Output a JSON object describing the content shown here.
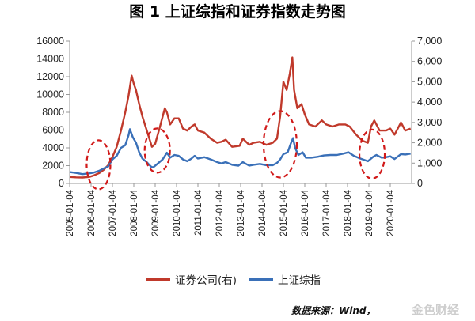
{
  "chart_data": {
    "type": "line",
    "title": "图 1 上证综指和证券指数走势图",
    "source": "数据来源：Wind，",
    "watermark": "金色财经",
    "x_labels": [
      "2005-01-04",
      "2006-01-04",
      "2007-01-04",
      "2008-01-04",
      "2009-01-04",
      "2010-01-04",
      "2011-01-04",
      "2012-01-04",
      "2013-01-04",
      "2014-01-04",
      "2015-01-04",
      "2016-01-04",
      "2017-01-04",
      "2018-01-04",
      "2019-01-04",
      "2020-01-04"
    ],
    "x_range": [
      2005.0,
      2021.0
    ],
    "y_left": {
      "ticks": [
        "0",
        "2000",
        "4000",
        "6000",
        "8000",
        "10000",
        "12000",
        "14000",
        "16000"
      ],
      "range": [
        0,
        16000
      ]
    },
    "y_right": {
      "ticks": [
        "0",
        "1,000",
        "2,000",
        "3,000",
        "4,000",
        "5,000",
        "6,000",
        "7,000"
      ],
      "range": [
        0,
        7000
      ]
    },
    "legend_position": "bottom",
    "series": [
      {
        "name": "证券公司(右)",
        "axis": "right",
        "color": "#c0392b",
        "points": [
          [
            2005.0,
            320
          ],
          [
            2005.3,
            300
          ],
          [
            2005.6,
            290
          ],
          [
            2005.9,
            320
          ],
          [
            2006.1,
            380
          ],
          [
            2006.4,
            520
          ],
          [
            2006.6,
            680
          ],
          [
            2006.8,
            900
          ],
          [
            2007.0,
            1300
          ],
          [
            2007.2,
            1800
          ],
          [
            2007.4,
            2600
          ],
          [
            2007.6,
            3500
          ],
          [
            2007.75,
            4300
          ],
          [
            2007.9,
            5300
          ],
          [
            2008.0,
            4900
          ],
          [
            2008.1,
            4600
          ],
          [
            2008.25,
            3900
          ],
          [
            2008.4,
            3300
          ],
          [
            2008.55,
            2800
          ],
          [
            2008.7,
            2300
          ],
          [
            2008.85,
            1800
          ],
          [
            2009.0,
            1950
          ],
          [
            2009.2,
            2700
          ],
          [
            2009.45,
            3700
          ],
          [
            2009.55,
            3500
          ],
          [
            2009.7,
            2900
          ],
          [
            2009.9,
            3200
          ],
          [
            2010.1,
            3200
          ],
          [
            2010.3,
            2700
          ],
          [
            2010.5,
            2600
          ],
          [
            2010.7,
            2800
          ],
          [
            2010.85,
            2900
          ],
          [
            2011.0,
            2600
          ],
          [
            2011.3,
            2500
          ],
          [
            2011.6,
            2200
          ],
          [
            2011.9,
            2000
          ],
          [
            2012.1,
            2050
          ],
          [
            2012.3,
            2150
          ],
          [
            2012.6,
            1800
          ],
          [
            2012.95,
            1850
          ],
          [
            2013.1,
            2200
          ],
          [
            2013.4,
            1900
          ],
          [
            2013.6,
            2000
          ],
          [
            2013.9,
            2050
          ],
          [
            2014.2,
            1900
          ],
          [
            2014.5,
            2000
          ],
          [
            2014.7,
            2200
          ],
          [
            2014.85,
            3300
          ],
          [
            2015.0,
            5000
          ],
          [
            2015.15,
            4600
          ],
          [
            2015.3,
            5400
          ],
          [
            2015.42,
            6200
          ],
          [
            2015.5,
            4600
          ],
          [
            2015.65,
            3700
          ],
          [
            2015.85,
            3900
          ],
          [
            2016.0,
            3400
          ],
          [
            2016.2,
            2900
          ],
          [
            2016.5,
            2800
          ],
          [
            2016.8,
            3100
          ],
          [
            2017.0,
            2900
          ],
          [
            2017.3,
            2800
          ],
          [
            2017.6,
            2900
          ],
          [
            2017.9,
            2900
          ],
          [
            2018.1,
            2800
          ],
          [
            2018.4,
            2400
          ],
          [
            2018.7,
            2100
          ],
          [
            2018.95,
            2000
          ],
          [
            2019.1,
            2800
          ],
          [
            2019.25,
            3100
          ],
          [
            2019.5,
            2600
          ],
          [
            2019.8,
            2600
          ],
          [
            2020.0,
            2700
          ],
          [
            2020.2,
            2400
          ],
          [
            2020.5,
            3000
          ],
          [
            2020.7,
            2600
          ],
          [
            2020.95,
            2700
          ]
        ]
      },
      {
        "name": "上证综指",
        "axis": "left",
        "color": "#3a70b8",
        "points": [
          [
            2005.0,
            1280
          ],
          [
            2005.3,
            1180
          ],
          [
            2005.6,
            1050
          ],
          [
            2005.9,
            1130
          ],
          [
            2006.1,
            1200
          ],
          [
            2006.4,
            1450
          ],
          [
            2006.6,
            1700
          ],
          [
            2006.8,
            1900
          ],
          [
            2007.0,
            2700
          ],
          [
            2007.2,
            3100
          ],
          [
            2007.4,
            4000
          ],
          [
            2007.6,
            4300
          ],
          [
            2007.75,
            5400
          ],
          [
            2007.82,
            6100
          ],
          [
            2007.95,
            5200
          ],
          [
            2008.1,
            4600
          ],
          [
            2008.25,
            3500
          ],
          [
            2008.4,
            2800
          ],
          [
            2008.6,
            2400
          ],
          [
            2008.8,
            1900
          ],
          [
            2008.9,
            1800
          ],
          [
            2009.1,
            2200
          ],
          [
            2009.35,
            2700
          ],
          [
            2009.55,
            3450
          ],
          [
            2009.7,
            2900
          ],
          [
            2009.9,
            3200
          ],
          [
            2010.1,
            3100
          ],
          [
            2010.3,
            2700
          ],
          [
            2010.5,
            2500
          ],
          [
            2010.7,
            2800
          ],
          [
            2010.85,
            3100
          ],
          [
            2011.0,
            2800
          ],
          [
            2011.3,
            2950
          ],
          [
            2011.6,
            2700
          ],
          [
            2011.9,
            2400
          ],
          [
            2012.1,
            2250
          ],
          [
            2012.3,
            2400
          ],
          [
            2012.6,
            2100
          ],
          [
            2012.9,
            2000
          ],
          [
            2013.1,
            2400
          ],
          [
            2013.4,
            2000
          ],
          [
            2013.6,
            2100
          ],
          [
            2013.9,
            2200
          ],
          [
            2014.2,
            2050
          ],
          [
            2014.5,
            2050
          ],
          [
            2014.7,
            2300
          ],
          [
            2014.85,
            2700
          ],
          [
            2015.0,
            3300
          ],
          [
            2015.2,
            3500
          ],
          [
            2015.35,
            4500
          ],
          [
            2015.45,
            5100
          ],
          [
            2015.55,
            4000
          ],
          [
            2015.7,
            3200
          ],
          [
            2015.9,
            3500
          ],
          [
            2016.05,
            2900
          ],
          [
            2016.3,
            2900
          ],
          [
            2016.6,
            3000
          ],
          [
            2016.9,
            3150
          ],
          [
            2017.2,
            3200
          ],
          [
            2017.5,
            3200
          ],
          [
            2017.8,
            3350
          ],
          [
            2018.05,
            3500
          ],
          [
            2018.3,
            3100
          ],
          [
            2018.6,
            2800
          ],
          [
            2018.95,
            2500
          ],
          [
            2019.2,
            3000
          ],
          [
            2019.35,
            3200
          ],
          [
            2019.6,
            2900
          ],
          [
            2019.8,
            2950
          ],
          [
            2020.0,
            3050
          ],
          [
            2020.2,
            2750
          ],
          [
            2020.5,
            3300
          ],
          [
            2020.7,
            3250
          ],
          [
            2020.95,
            3350
          ]
        ]
      }
    ]
  },
  "colors": {
    "highlight_ellipse": "#d11919",
    "axis": "#999999"
  }
}
